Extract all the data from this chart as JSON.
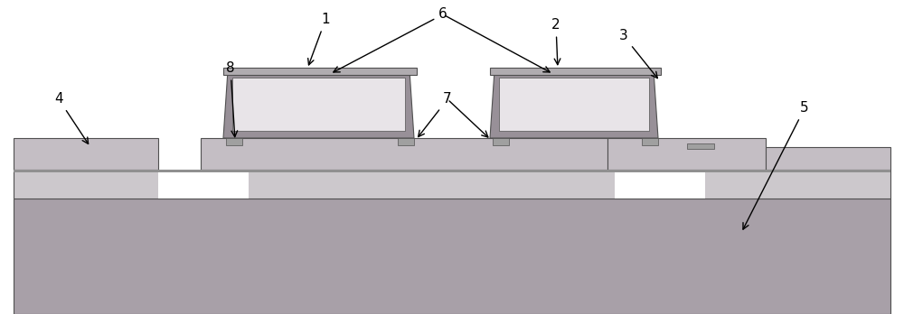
{
  "fig_width": 10.0,
  "fig_height": 3.48,
  "dpi": 100,
  "bg": "#ffffff",
  "colors": {
    "substrate_dark": "#a8a0a8",
    "substrate_light": "#ccc8cc",
    "platform": "#c4bec4",
    "led_frame": "#989098",
    "led_interior": "#e8e4e8",
    "led_top_strip": "#b0acb0",
    "contact_small": "#a0a0a0",
    "outline": "#505050",
    "white": "#ffffff",
    "thin_line": "#909090"
  }
}
